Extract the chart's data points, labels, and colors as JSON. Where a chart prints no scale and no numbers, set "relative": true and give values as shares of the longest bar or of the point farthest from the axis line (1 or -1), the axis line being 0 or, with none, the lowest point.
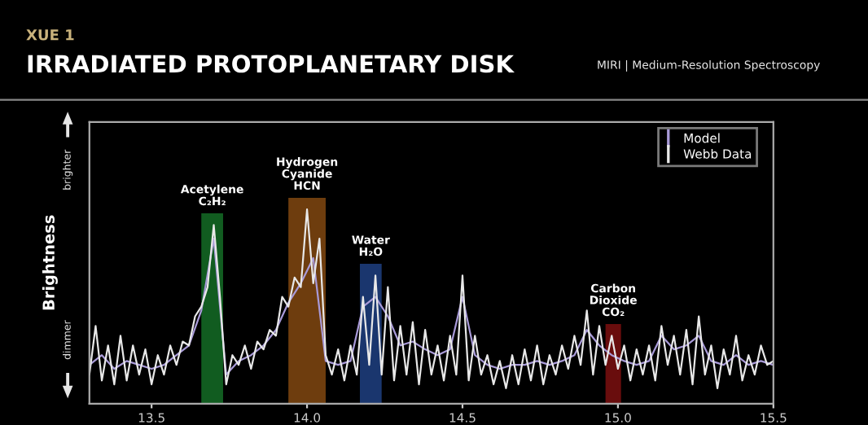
{
  "chart_data": {
    "type": "line",
    "relative": true,
    "subtitle": "XUE 1",
    "title": "IRRADIATED PROTOPLANETARY DISK",
    "annotations": [
      "MIRI | Medium-Resolution Spectroscopy",
      "brighter",
      "dimmer"
    ],
    "ylabel": "Brightness",
    "xlim": [
      13.3,
      15.5
    ],
    "xticks": [
      13.5,
      {
        "value": 14,
        "label": "14.0"
      },
      14.5,
      {
        "value": 15,
        "label": "15.0"
      },
      15.5
    ],
    "grid": false,
    "legend": "top right",
    "bands": [
      {
        "axis": "x",
        "from": 13.66,
        "to": 13.73,
        "label": "Acetylene\nC₂H₂",
        "color": "#1fa83a"
      },
      {
        "axis": "x",
        "from": 13.94,
        "to": 14.06,
        "label": "Hydrogen\nCyanide\nHCN",
        "color": "#c8701a"
      },
      {
        "axis": "x",
        "from": 14.17,
        "to": 14.24,
        "label": "Water\nH₂O",
        "color": "#2f62c8"
      },
      {
        "axis": "x",
        "from": 14.96,
        "to": 15.01,
        "label": "Carbon\nDioxide\nCO₂",
        "color": "#c01818"
      }
    ],
    "series": [
      {
        "name": "Model",
        "color": "#a89ad8",
        "x": [
          13.3,
          13.34,
          13.38,
          13.42,
          13.46,
          13.5,
          13.54,
          13.58,
          13.62,
          13.66,
          13.7,
          13.74,
          13.78,
          13.82,
          13.86,
          13.9,
          13.94,
          13.98,
          14.02,
          14.06,
          14.1,
          14.14,
          14.18,
          14.22,
          14.26,
          14.3,
          14.34,
          14.38,
          14.42,
          14.46,
          14.5,
          14.54,
          14.58,
          14.62,
          14.66,
          14.7,
          14.74,
          14.78,
          14.82,
          14.86,
          14.9,
          14.94,
          14.98,
          15.02,
          15.06,
          15.1,
          15.14,
          15.18,
          15.22,
          15.26,
          15.3,
          15.34,
          15.38,
          15.42,
          15.46,
          15.5
        ],
        "values": [
          0.2,
          0.25,
          0.18,
          0.22,
          0.2,
          0.18,
          0.2,
          0.25,
          0.3,
          0.48,
          0.85,
          0.15,
          0.22,
          0.25,
          0.3,
          0.38,
          0.52,
          0.62,
          0.75,
          0.22,
          0.2,
          0.22,
          0.5,
          0.55,
          0.45,
          0.3,
          0.32,
          0.28,
          0.25,
          0.28,
          0.55,
          0.25,
          0.2,
          0.18,
          0.2,
          0.2,
          0.22,
          0.2,
          0.22,
          0.25,
          0.38,
          0.3,
          0.25,
          0.22,
          0.2,
          0.22,
          0.35,
          0.28,
          0.3,
          0.35,
          0.22,
          0.2,
          0.25,
          0.2,
          0.22,
          0.2
        ]
      },
      {
        "name": "Webb Data",
        "color": "#e8e8e8",
        "x": [
          13.3,
          13.32,
          13.34,
          13.36,
          13.38,
          13.4,
          13.42,
          13.44,
          13.46,
          13.48,
          13.5,
          13.52,
          13.54,
          13.56,
          13.58,
          13.6,
          13.62,
          13.64,
          13.66,
          13.68,
          13.7,
          13.72,
          13.74,
          13.76,
          13.78,
          13.8,
          13.82,
          13.84,
          13.86,
          13.88,
          13.9,
          13.92,
          13.94,
          13.96,
          13.98,
          14.0,
          14.02,
          14.04,
          14.06,
          14.08,
          14.1,
          14.12,
          14.14,
          14.16,
          14.18,
          14.2,
          14.22,
          14.24,
          14.26,
          14.28,
          14.3,
          14.32,
          14.34,
          14.36,
          14.38,
          14.4,
          14.42,
          14.44,
          14.46,
          14.48,
          14.5,
          14.52,
          14.54,
          14.56,
          14.58,
          14.6,
          14.62,
          14.64,
          14.66,
          14.68,
          14.7,
          14.72,
          14.74,
          14.76,
          14.78,
          14.8,
          14.82,
          14.84,
          14.86,
          14.88,
          14.9,
          14.92,
          14.94,
          14.96,
          14.98,
          15.0,
          15.02,
          15.04,
          15.06,
          15.08,
          15.1,
          15.12,
          15.14,
          15.16,
          15.18,
          15.2,
          15.22,
          15.24,
          15.26,
          15.28,
          15.3,
          15.32,
          15.34,
          15.36,
          15.38,
          15.4,
          15.42,
          15.44,
          15.46,
          15.48,
          15.5
        ],
        "values": [
          0.15,
          0.4,
          0.12,
          0.3,
          0.1,
          0.35,
          0.12,
          0.3,
          0.15,
          0.28,
          0.1,
          0.25,
          0.15,
          0.3,
          0.2,
          0.32,
          0.3,
          0.45,
          0.5,
          0.6,
          0.92,
          0.55,
          0.1,
          0.25,
          0.2,
          0.3,
          0.18,
          0.32,
          0.28,
          0.38,
          0.35,
          0.55,
          0.5,
          0.65,
          0.6,
          1.0,
          0.62,
          0.85,
          0.25,
          0.15,
          0.28,
          0.12,
          0.3,
          0.15,
          0.55,
          0.2,
          0.66,
          0.15,
          0.6,
          0.12,
          0.4,
          0.15,
          0.42,
          0.1,
          0.38,
          0.15,
          0.3,
          0.12,
          0.35,
          0.15,
          0.66,
          0.12,
          0.35,
          0.15,
          0.25,
          0.1,
          0.22,
          0.08,
          0.25,
          0.1,
          0.28,
          0.12,
          0.3,
          0.1,
          0.25,
          0.15,
          0.3,
          0.18,
          0.35,
          0.2,
          0.48,
          0.15,
          0.4,
          0.2,
          0.35,
          0.18,
          0.3,
          0.12,
          0.28,
          0.15,
          0.3,
          0.12,
          0.4,
          0.2,
          0.35,
          0.15,
          0.38,
          0.1,
          0.45,
          0.15,
          0.3,
          0.08,
          0.28,
          0.15,
          0.35,
          0.12,
          0.25,
          0.15,
          0.3,
          0.2,
          0.22
        ]
      }
    ]
  }
}
